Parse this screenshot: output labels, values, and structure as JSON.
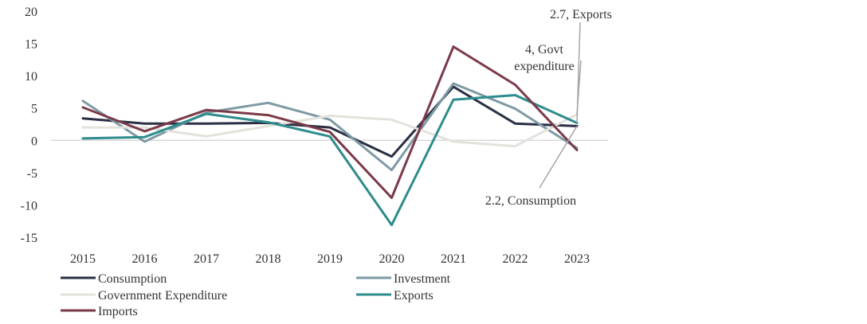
{
  "chart_data": {
    "type": "line",
    "categories": [
      "2015",
      "2016",
      "2017",
      "2018",
      "2019",
      "2020",
      "2021",
      "2022",
      "2023"
    ],
    "ylim": [
      -15,
      20
    ],
    "yticks": [
      "20",
      "15",
      "10",
      "5",
      "0",
      "-5",
      "-10",
      "-15"
    ],
    "ytick_values": [
      20,
      15,
      10,
      5,
      0,
      -5,
      -10,
      -15
    ],
    "grid": false,
    "zero_line": true,
    "legend_position": "bottom",
    "series": [
      {
        "name": "Consumption",
        "color": "#2b2f44",
        "values": [
          3.4,
          2.6,
          2.6,
          2.7,
          2.0,
          -2.5,
          8.3,
          2.6,
          2.2
        ]
      },
      {
        "name": "Investment",
        "color": "#7e9aa5",
        "values": [
          6.1,
          -0.2,
          4.3,
          5.8,
          3.2,
          -4.6,
          8.8,
          4.9,
          -1.2
        ]
      },
      {
        "name": "Government Expenditure",
        "color": "#e3e2dc",
        "values": [
          2.0,
          2.0,
          0.6,
          2.2,
          3.8,
          3.2,
          -0.2,
          -0.9,
          4.0
        ]
      },
      {
        "name": "Exports",
        "color": "#2f8c8c",
        "values": [
          0.3,
          0.5,
          4.1,
          2.8,
          0.6,
          -13.1,
          6.3,
          7.0,
          2.7
        ]
      },
      {
        "name": "Imports",
        "color": "#7a3a4a",
        "values": [
          5.1,
          1.4,
          4.7,
          3.9,
          1.3,
          -8.9,
          14.5,
          8.6,
          -1.5
        ]
      }
    ],
    "annotations": [
      {
        "text": "2.7, Exports",
        "series": "Exports"
      },
      {
        "lines": [
          "4, Govt",
          "expenditure"
        ],
        "series": "Government Expenditure"
      },
      {
        "text": "2.2, Consumption",
        "series": "Consumption"
      }
    ]
  }
}
